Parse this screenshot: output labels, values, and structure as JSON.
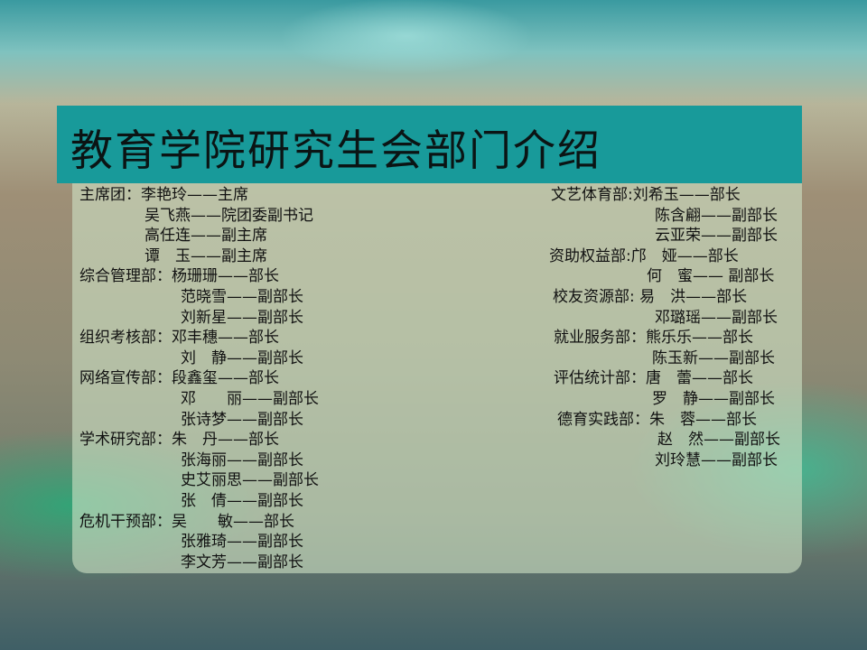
{
  "title": "教育学院研究生会部门介绍",
  "left_column": [
    "主席团：李艳玲——主席",
    "吴飞燕——院团委副书记",
    "高任连——副主席",
    "谭　玉——副主席",
    "综合管理部：杨珊珊——部长",
    "范晓雪——副部长",
    "刘新星——副部长",
    "组织考核部：邓丰穗——部长",
    "刘　静——副部长",
    "网络宣传部：段鑫玺——部长",
    "邓　　丽——副部长",
    "张诗梦——副部长",
    "学术研究部：朱　丹——部长",
    "张海丽——副部长",
    "史艾丽思——副部长",
    "张　倩——副部长",
    "危机干预部：吴　　敏——部长",
    "张雅琦——副部长",
    "李文芳——副部长"
  ],
  "right_column": [
    "文艺体育部:刘希玉——部长",
    "陈含翩——副部长",
    "云亚荣——副部长",
    "资助权益部:邝　娅——部长",
    "何　蜜—— 副部长",
    "校友资源部: 易　洪——部长",
    "邓璐瑶——副部长",
    "就业服务部：熊乐乐——部长",
    "陈玉新——副部长",
    "评估统计部：唐　蕾——部长",
    "罗　静——副部长",
    "德育实践部：朱　蓉——部长",
    "赵　然——副部长",
    "刘玲慧——副部长"
  ],
  "colors": {
    "banner": "#189a9a",
    "text": "#111111"
  }
}
